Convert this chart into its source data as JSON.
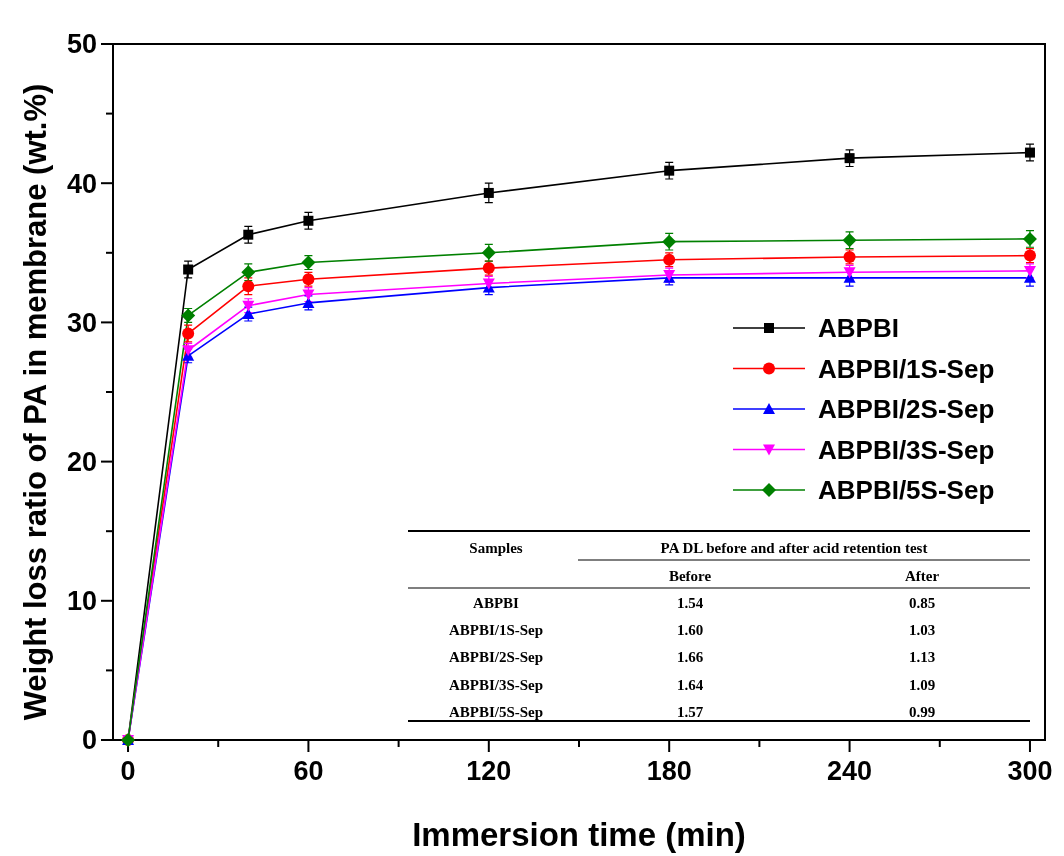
{
  "chart_data": {
    "type": "line",
    "xlabel": "Immersion time (min)",
    "ylabel": "Weight loss ratio of PA in membrane (wt.%)",
    "x": [
      0,
      20,
      40,
      60,
      120,
      180,
      240,
      300
    ],
    "series": [
      {
        "name": "ABPBI",
        "color": "#000000",
        "marker": "square",
        "values": [
          0,
          33.8,
          36.3,
          37.3,
          39.3,
          40.9,
          41.8,
          42.2
        ],
        "errors": [
          null,
          0.6,
          0.6,
          0.6,
          0.7,
          0.6,
          0.6,
          0.6
        ]
      },
      {
        "name": "ABPBI/1S-Sep",
        "color": "#ff0000",
        "marker": "circle",
        "values": [
          0,
          29.2,
          32.6,
          33.1,
          33.9,
          34.5,
          34.7,
          34.8
        ],
        "errors": [
          null,
          0.6,
          0.6,
          0.5,
          0.5,
          0.5,
          0.5,
          0.5
        ]
      },
      {
        "name": "ABPBI/2S-Sep",
        "color": "#0000ff",
        "marker": "triangle",
        "values": [
          0,
          27.6,
          30.6,
          31.4,
          32.5,
          33.2,
          33.2,
          33.2
        ],
        "errors": [
          null,
          0.5,
          0.5,
          0.5,
          0.5,
          0.5,
          0.6,
          0.6
        ]
      },
      {
        "name": "ABPBI/3S-Sep",
        "color": "#ff00ff",
        "marker": "triangle-down",
        "values": [
          0,
          28.0,
          31.2,
          32.0,
          32.8,
          33.4,
          33.6,
          33.7
        ],
        "errors": [
          null,
          0.5,
          0.5,
          0.5,
          0.5,
          0.5,
          0.5,
          0.5
        ]
      },
      {
        "name": "ABPBI/5S-Sep",
        "color": "#008000",
        "marker": "diamond",
        "values": [
          0,
          30.5,
          33.6,
          34.3,
          35.0,
          35.8,
          35.9,
          36.0
        ],
        "errors": [
          null,
          0.5,
          0.6,
          0.5,
          0.6,
          0.6,
          0.6,
          0.6
        ]
      }
    ],
    "xlim": [
      -5,
      305
    ],
    "xticks": [
      0,
      {
        "value": 30,
        "label": null
      },
      60,
      {
        "value": 90,
        "label": null
      },
      120,
      {
        "value": 150,
        "label": null
      },
      180,
      {
        "value": 210,
        "label": null
      },
      240,
      {
        "value": 270,
        "label": null
      },
      300
    ],
    "ylim": [
      0,
      50
    ],
    "yticks": [
      0,
      {
        "value": 5,
        "label": null
      },
      10,
      {
        "value": 15,
        "label": null
      },
      20,
      {
        "value": 25,
        "label": null
      },
      30,
      {
        "value": 35,
        "label": null
      },
      40,
      {
        "value": 45,
        "label": null
      },
      50
    ],
    "grid": false,
    "legend": "right",
    "annotations": [
      "Samples",
      "PA DL before and after acid retention test",
      "Before",
      "After",
      "ABPBI",
      "1.54",
      "0.85",
      "ABPBI/1S-Sep",
      "1.60",
      "1.03",
      "ABPBI/2S-Sep",
      "1.66",
      "1.13",
      "ABPBI/3S-Sep",
      "1.64",
      "1.09",
      "ABPBI/5S-Sep",
      "1.57",
      "0.99"
    ]
  }
}
